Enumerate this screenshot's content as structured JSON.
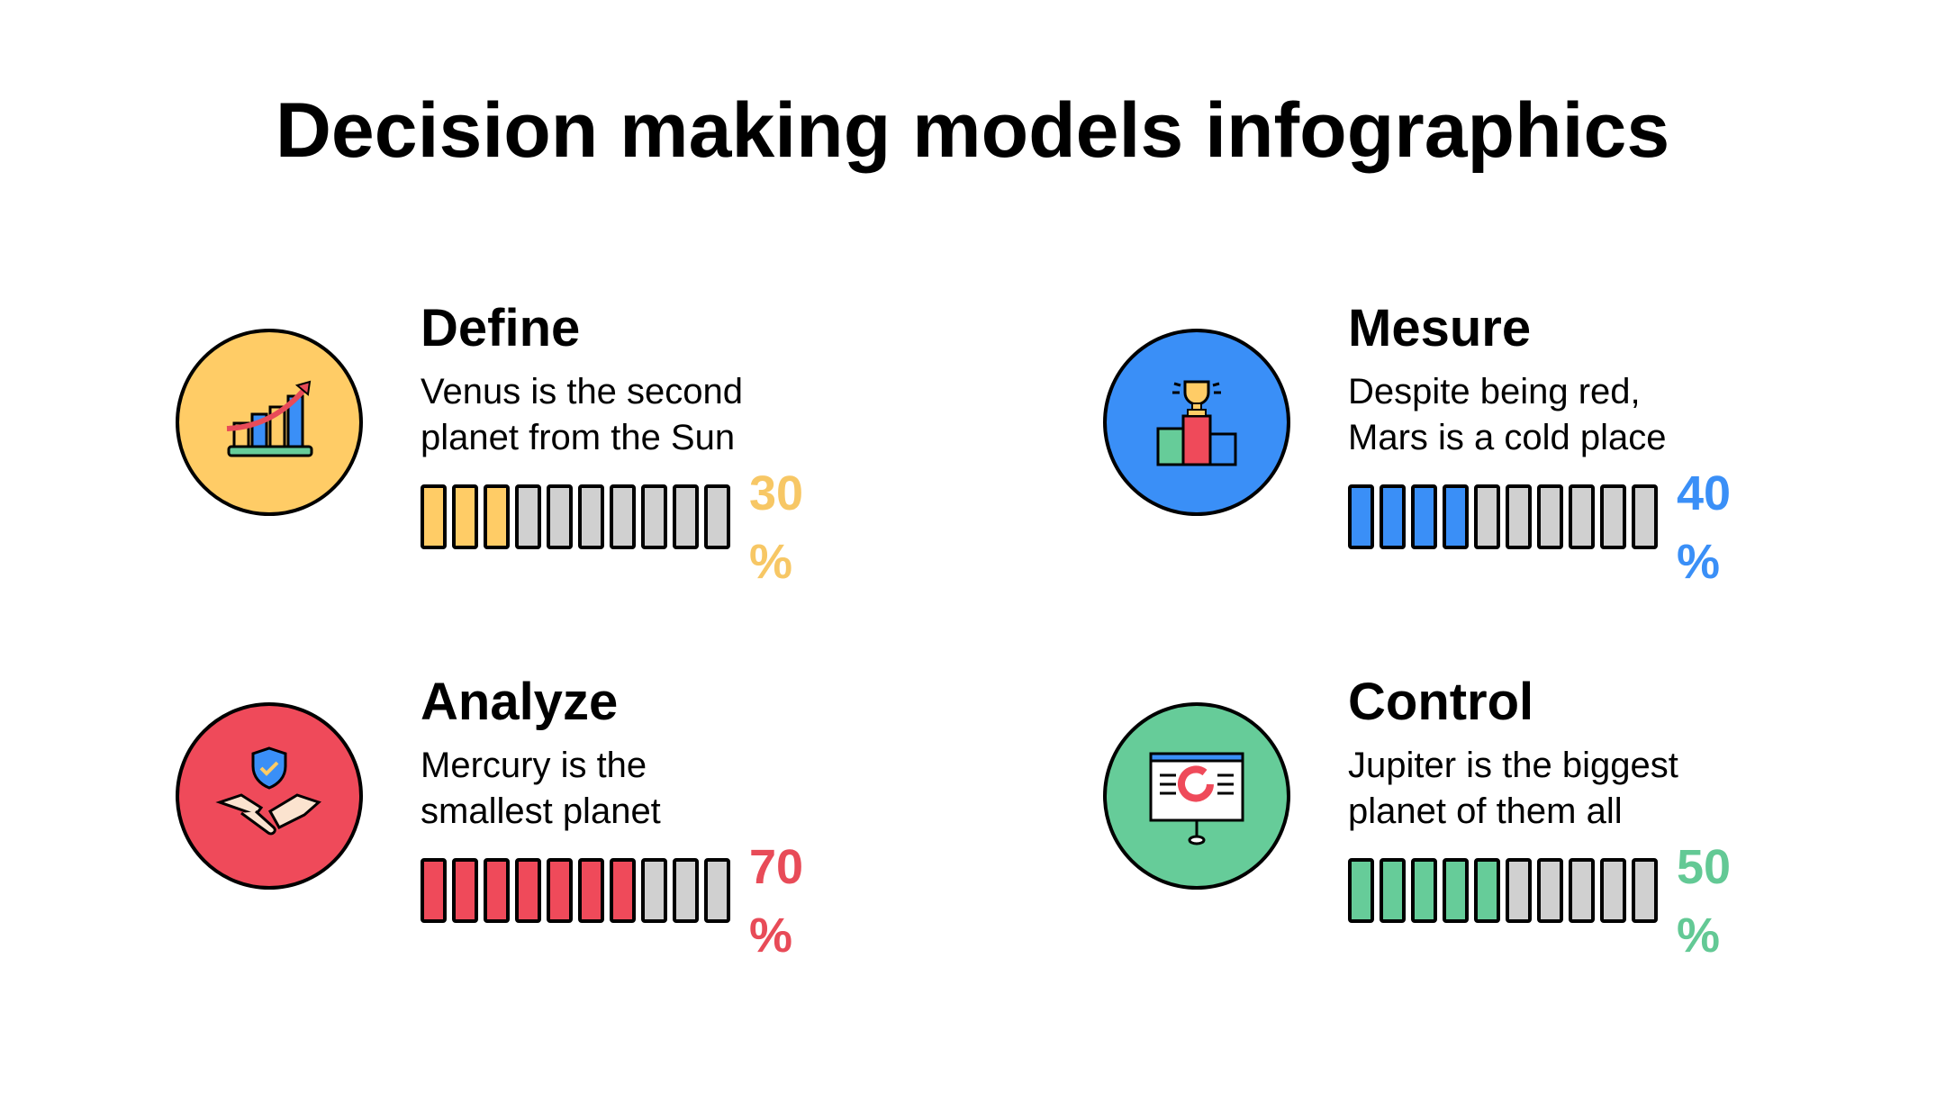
{
  "title": "Decision making models infographics",
  "items": [
    {
      "heading": "Define",
      "line1": "Venus is the second",
      "line2": "planet from the Sun",
      "value": "30",
      "unit": "%",
      "filled_segments": 3,
      "total_segments": 10,
      "color": "#ffcc66",
      "text_color": "#f7c765",
      "icon": "growth-chart-icon"
    },
    {
      "heading": "Mesure",
      "line1": "Despite being red,",
      "line2": "Mars is a cold place",
      "value": "40",
      "unit": "%",
      "filled_segments": 4,
      "total_segments": 10,
      "color": "#3a8ff7",
      "text_color": "#3a8ff7",
      "icon": "trophy-podium-icon"
    },
    {
      "heading": "Analyze",
      "line1": "Mercury is the",
      "line2": "smallest planet",
      "value": "70",
      "unit": "%",
      "filled_segments": 7,
      "total_segments": 10,
      "color": "#ef4a5a",
      "text_color": "#e84b58",
      "icon": "handshake-shield-icon"
    },
    {
      "heading": "Control",
      "line1": "Jupiter is the biggest",
      "line2": "planet of them all",
      "value": "50",
      "unit": "%",
      "filled_segments": 5,
      "total_segments": 10,
      "color": "#66cc99",
      "text_color": "#63c995",
      "icon": "presentation-board-icon"
    }
  ]
}
